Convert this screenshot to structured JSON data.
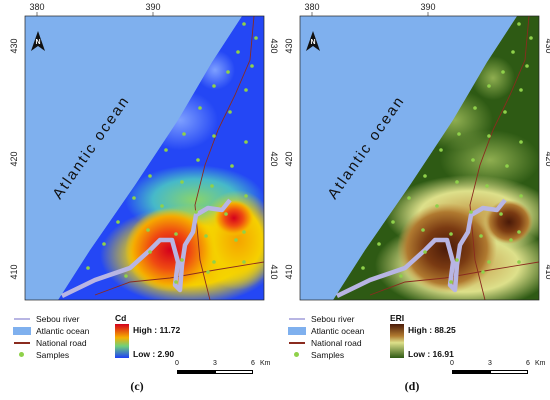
{
  "panels": [
    {
      "id": "c",
      "label": "(c)",
      "ocean_label": "Atlantic ocean",
      "north_label": "N",
      "x_ticks": [
        "380",
        "390"
      ],
      "y_ticks": [
        "430",
        "420",
        "410"
      ],
      "legend": {
        "river": "Sebou river",
        "ocean": "Atlantic ocean",
        "road": "National road",
        "samples": "Samples",
        "variable": "Cd",
        "high": "High : 11.72",
        "low": "Low : 2.90"
      },
      "scale": {
        "ticks": [
          "0",
          "3",
          "6"
        ],
        "unit": "Km"
      }
    },
    {
      "id": "d",
      "label": "(d)",
      "ocean_label": "Atlantic ocean",
      "north_label": "N",
      "x_ticks": [
        "380",
        "390"
      ],
      "y_ticks": [
        "430",
        "420",
        "410"
      ],
      "legend": {
        "river": "Sebou river",
        "ocean": "Atlantic ocean",
        "road": "National road",
        "samples": "Samples",
        "variable": "ERI",
        "high": "High : 88.25",
        "low": "Low : 16.91"
      },
      "scale": {
        "ticks": [
          "0",
          "3",
          "6"
        ],
        "unit": "Km"
      }
    }
  ],
  "colors": {
    "ocean": "#7fb0ee",
    "river": "#b8b5e3",
    "road": "#8a2b1f",
    "samples": "#8fd14a"
  }
}
